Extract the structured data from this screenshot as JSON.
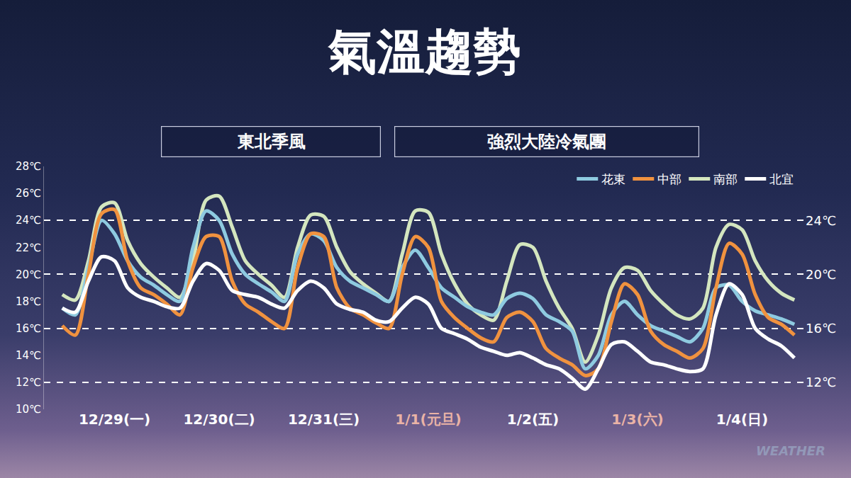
{
  "chart_data": {
    "type": "line",
    "title": "氣溫趨勢",
    "annotations": [
      "東北季風",
      "強烈大陸冷氣團",
      "WEATHER"
    ],
    "categories": [
      null,
      null,
      null,
      null,
      "12/29(一)",
      null,
      null,
      null,
      null,
      null,
      null,
      null,
      "12/30(二)",
      null,
      null,
      null,
      null,
      null,
      null,
      null,
      "12/31(三)",
      null,
      null,
      null,
      null,
      null,
      null,
      null,
      "1/1(元旦)",
      null,
      null,
      null,
      null,
      null,
      null,
      null,
      "1/2(五)",
      null,
      null,
      null,
      null,
      null,
      null,
      null,
      "1/3(六)",
      null,
      null,
      null,
      null,
      null,
      null,
      null,
      "1/4(日)",
      null,
      null,
      null,
      null
    ],
    "series": [
      {
        "name": "花東",
        "color": "#8ecae0",
        "line_style": "solid",
        "values": [
          17.5,
          17.0,
          20.5,
          24.0,
          23.0,
          21.0,
          19.8,
          19.2,
          18.5,
          18.0,
          22.0,
          24.7,
          24.0,
          21.5,
          20.0,
          19.3,
          18.7,
          18.0,
          21.5,
          23.0,
          22.5,
          20.5,
          19.5,
          19.0,
          18.5,
          18.0,
          20.5,
          21.8,
          20.5,
          19.0,
          18.3,
          17.6,
          17.2,
          17.0,
          18.2,
          18.6,
          18.2,
          17.0,
          16.5,
          15.8,
          13.0,
          14.0,
          17.0,
          18.0,
          17.0,
          16.2,
          15.8,
          15.4,
          15.0,
          16.0,
          19.0,
          19.2,
          18.0,
          17.3,
          17.0,
          16.7,
          16.3
        ]
      },
      {
        "name": "中部",
        "color": "#f0923f",
        "line_style": "solid",
        "values": [
          16.2,
          15.5,
          20.0,
          24.5,
          24.8,
          21.0,
          19.0,
          18.5,
          17.8,
          17.0,
          20.5,
          22.8,
          22.8,
          19.5,
          17.8,
          17.2,
          16.5,
          16.0,
          20.5,
          23.0,
          22.8,
          19.0,
          17.5,
          17.0,
          16.4,
          16.0,
          20.0,
          22.8,
          22.0,
          18.0,
          16.8,
          16.0,
          15.3,
          15.0,
          16.8,
          17.2,
          16.5,
          14.5,
          13.8,
          13.3,
          12.5,
          13.0,
          16.5,
          19.3,
          18.5,
          15.8,
          14.8,
          14.3,
          13.8,
          14.5,
          19.0,
          22.3,
          21.5,
          18.5,
          16.8,
          16.3,
          15.5
        ]
      },
      {
        "name": "南部",
        "color": "#d4e6bf",
        "line_style": "solid",
        "values": [
          18.5,
          18.1,
          21.0,
          25.0,
          25.3,
          22.5,
          20.8,
          19.8,
          19.0,
          18.3,
          21.0,
          25.5,
          25.8,
          23.5,
          21.0,
          20.0,
          19.2,
          18.3,
          22.0,
          24.4,
          24.3,
          22.0,
          20.2,
          19.3,
          18.6,
          18.0,
          21.5,
          24.7,
          24.6,
          21.5,
          19.3,
          17.8,
          17.0,
          16.6,
          19.5,
          22.2,
          22.0,
          19.5,
          17.5,
          16.0,
          13.5,
          15.5,
          19.0,
          20.5,
          20.3,
          18.8,
          17.8,
          17.0,
          16.7,
          17.5,
          22.0,
          23.7,
          23.3,
          21.0,
          19.5,
          18.6,
          18.1
        ]
      },
      {
        "name": "北宜",
        "color": "#ffffff",
        "line_style": "solid",
        "values": [
          17.5,
          17.2,
          19.5,
          21.3,
          21.0,
          19.0,
          18.3,
          18.0,
          17.6,
          17.5,
          19.5,
          20.8,
          20.3,
          18.8,
          18.5,
          18.3,
          17.8,
          17.5,
          18.8,
          19.5,
          19.0,
          17.8,
          17.4,
          17.2,
          16.6,
          16.5,
          17.5,
          18.3,
          17.8,
          16.0,
          15.6,
          15.2,
          14.6,
          14.3,
          14.0,
          14.2,
          13.8,
          13.3,
          13.0,
          12.3,
          11.5,
          13.0,
          14.8,
          15.0,
          14.3,
          13.5,
          13.3,
          13.0,
          12.8,
          13.0,
          17.0,
          19.3,
          18.5,
          16.0,
          15.2,
          14.7,
          13.8
        ]
      }
    ],
    "ylim": [
      10,
      28
    ],
    "yticks": [
      {
        "value": 10,
        "label": "10℃"
      },
      {
        "value": 12,
        "label": "12℃"
      },
      {
        "value": 14,
        "label": "14℃"
      },
      {
        "value": 16,
        "label": "16℃"
      },
      {
        "value": 18,
        "label": "18℃"
      },
      {
        "value": 20,
        "label": "20℃"
      },
      {
        "value": 22,
        "label": "22℃"
      },
      {
        "value": 24,
        "label": "24℃"
      },
      {
        "value": 26,
        "label": "26℃"
      },
      {
        "value": 28,
        "label": "28℃"
      }
    ],
    "y2lim": [
      10,
      28
    ],
    "y2ticks": [
      {
        "value": 12,
        "label": "12℃"
      },
      {
        "value": 16,
        "label": "16℃"
      },
      {
        "value": 20,
        "label": "20℃"
      },
      {
        "value": 24,
        "label": "24℃"
      }
    ],
    "grid": true,
    "legend": "upper right"
  }
}
